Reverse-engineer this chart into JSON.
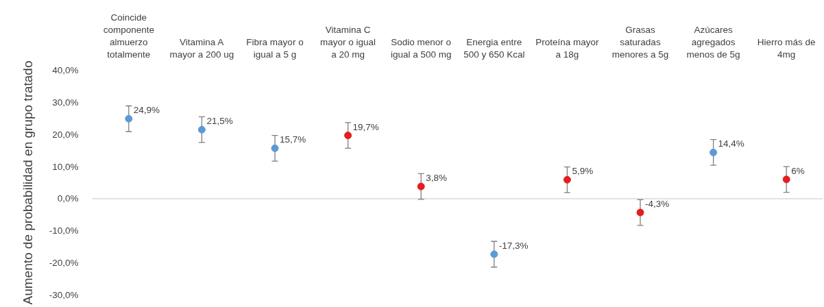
{
  "chart_data": {
    "type": "scatter",
    "ylabel": "Aumento de probabilidad en grupo tratado",
    "categories": [
      "Coincide componente almuerzo totalmente",
      "Vitamina A mayor a 200 ug",
      "Fibra mayor o igual a 5 g",
      "Vitamina C mayor o igual a 20 mg",
      "Sodio menor o igual a 500 mg",
      "Energia entre 500 y 650 Kcal",
      "Proteína mayor a 18g",
      "Grasas saturadas menores a 5g",
      "Azúcares agregados menos de 5g",
      "Hierro más de 4mg"
    ],
    "values": [
      24.9,
      21.5,
      15.7,
      19.7,
      3.8,
      -17.3,
      5.9,
      -4.3,
      14.4,
      6
    ],
    "colors": [
      "#5b9bd5",
      "#5b9bd5",
      "#5b9bd5",
      "#e41e1e",
      "#e41e1e",
      "#5b9bd5",
      "#e41e1e",
      "#e41e1e",
      "#5b9bd5",
      "#e41e1e"
    ],
    "errors": [
      4,
      4,
      4,
      4,
      4,
      4,
      4,
      4,
      4,
      4
    ],
    "value_labels": [
      "24,9%",
      "21,5%",
      "15,7%",
      "19,7%",
      "3,8%",
      "-17,3%",
      "5,9%",
      "-4,3%",
      "14,4%",
      "6%"
    ],
    "ylim": [
      -30,
      40
    ],
    "yticks": [
      {
        "value": -30,
        "label": "-30,0%"
      },
      {
        "value": -20,
        "label": "-20,0%"
      },
      {
        "value": -10,
        "label": "-10,0%"
      },
      {
        "value": 0,
        "label": "0,0%"
      },
      {
        "value": 10,
        "label": "10,0%"
      },
      {
        "value": 20,
        "label": "20,0%"
      },
      {
        "value": 30,
        "label": "30,0%"
      },
      {
        "value": 40,
        "label": "40,0%"
      }
    ],
    "ref_lines": [
      {
        "axis": "y",
        "value": 0,
        "color": "#d9d9d9"
      }
    ],
    "marker": "circle"
  }
}
